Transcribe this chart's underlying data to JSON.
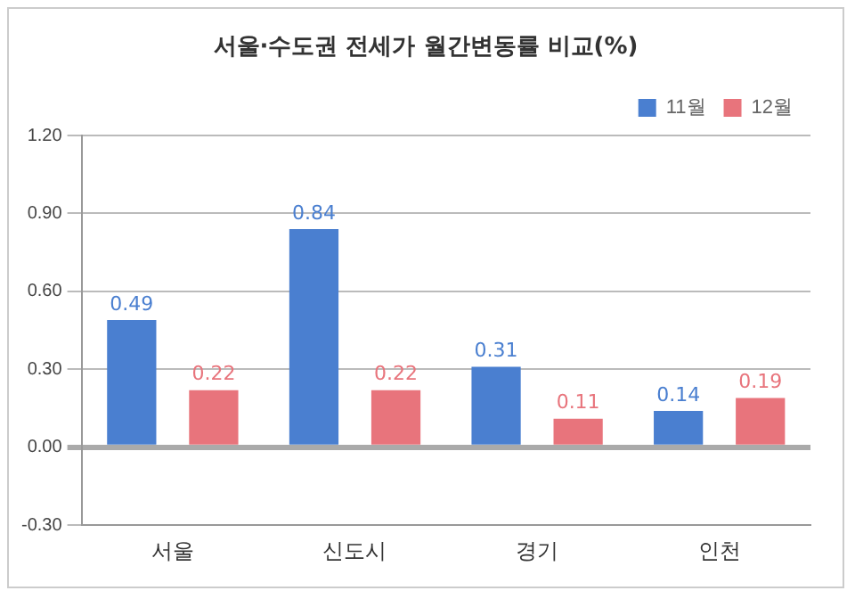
{
  "chart_data": {
    "type": "bar",
    "title": "서울·수도권 전세가 월간변동률 비교(%)",
    "categories": [
      "서울",
      "신도시",
      "경기",
      "인천"
    ],
    "series": [
      {
        "name": "11월",
        "color": "#4a7fd0",
        "values": [
          0.49,
          0.84,
          0.31,
          0.14
        ]
      },
      {
        "name": "12월",
        "color": "#e8747c",
        "values": [
          0.22,
          0.22,
          0.11,
          0.19
        ]
      }
    ],
    "ylim": [
      -0.3,
      1.2
    ],
    "yticks": [
      {
        "value": -0.3,
        "label": "-0.30"
      },
      {
        "value": 0,
        "label": "0.00"
      },
      {
        "value": 0.3,
        "label": "0.30"
      },
      {
        "value": 0.6,
        "label": "0.60"
      },
      {
        "value": 0.9,
        "label": "0.90"
      },
      {
        "value": 1.2,
        "label": "1.20"
      }
    ],
    "grid": "y",
    "legend": "top right",
    "data_labels": true
  }
}
